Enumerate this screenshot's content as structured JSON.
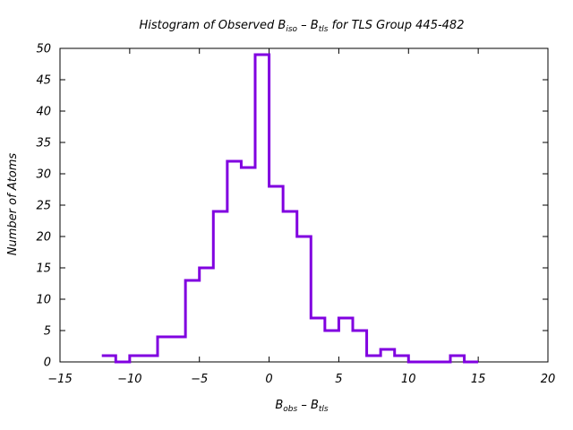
{
  "chart_data": {
    "type": "histogram",
    "title": {
      "prefix": "Histogram of Observed B",
      "sub1": "iso",
      "mid": " – B",
      "sub2": "tls",
      "suffix": " for TLS Group 445-482"
    },
    "xlabel": {
      "main1": "B",
      "sub1": "obs",
      "mid": " – B",
      "sub2": "tls"
    },
    "ylabel": "Number of Atoms",
    "xlim": [
      -15,
      20
    ],
    "ylim": [
      0,
      50
    ],
    "xticks": [
      -15,
      -10,
      -5,
      0,
      5,
      10,
      15,
      20
    ],
    "yticks": [
      0,
      5,
      10,
      15,
      20,
      25,
      30,
      35,
      40,
      45,
      50
    ],
    "bin_width": 1.0,
    "bins": [
      {
        "x": -11.5,
        "count": 1
      },
      {
        "x": -10.5,
        "count": 0
      },
      {
        "x": -9.5,
        "count": 1
      },
      {
        "x": -8.5,
        "count": 1
      },
      {
        "x": -7.5,
        "count": 4
      },
      {
        "x": -6.5,
        "count": 4
      },
      {
        "x": -5.5,
        "count": 13
      },
      {
        "x": -4.5,
        "count": 15
      },
      {
        "x": -3.5,
        "count": 24
      },
      {
        "x": -2.5,
        "count": 32
      },
      {
        "x": -1.5,
        "count": 31
      },
      {
        "x": -0.5,
        "count": 49
      },
      {
        "x": 0.5,
        "count": 28
      },
      {
        "x": 1.5,
        "count": 24
      },
      {
        "x": 2.5,
        "count": 20
      },
      {
        "x": 3.5,
        "count": 7
      },
      {
        "x": 4.5,
        "count": 5
      },
      {
        "x": 5.5,
        "count": 7
      },
      {
        "x": 6.5,
        "count": 5
      },
      {
        "x": 7.5,
        "count": 1
      },
      {
        "x": 8.5,
        "count": 2
      },
      {
        "x": 9.5,
        "count": 1
      },
      {
        "x": 10.5,
        "count": 0
      },
      {
        "x": 11.5,
        "count": 0
      },
      {
        "x": 12.5,
        "count": 0
      },
      {
        "x": 13.5,
        "count": 1
      },
      {
        "x": 14.5,
        "count": 0
      }
    ],
    "line_color": "#8000e0",
    "grid": false
  }
}
